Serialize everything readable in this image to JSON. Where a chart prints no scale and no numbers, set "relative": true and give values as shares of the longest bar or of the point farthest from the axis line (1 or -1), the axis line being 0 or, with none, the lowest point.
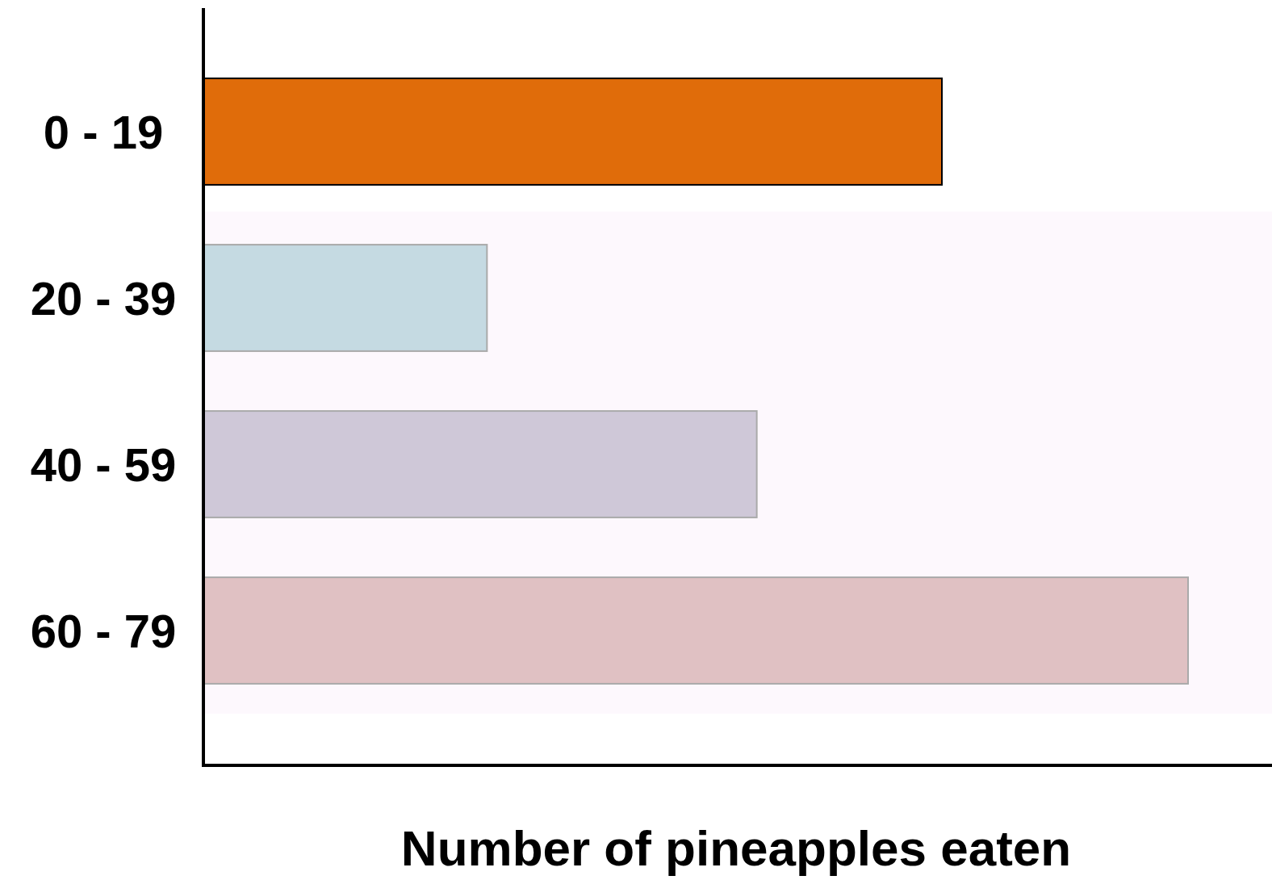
{
  "chart_data": {
    "type": "bar",
    "orientation": "horizontal",
    "relative": true,
    "xlabel": "Number of pineapples eaten",
    "categories": [
      "0 - 19",
      "20 - 39",
      "40 - 59",
      "60 - 79"
    ],
    "values": [
      0.75,
      0.288,
      0.562,
      1
    ],
    "colors": [
      "#e06c0a",
      "#c5dae2",
      "#cfc8d8",
      "#e0c1c3"
    ],
    "bands": [
      {
        "axis": "y",
        "from": "20 - 39",
        "to": "60 - 79",
        "color": "#fdf8fd"
      }
    ]
  }
}
